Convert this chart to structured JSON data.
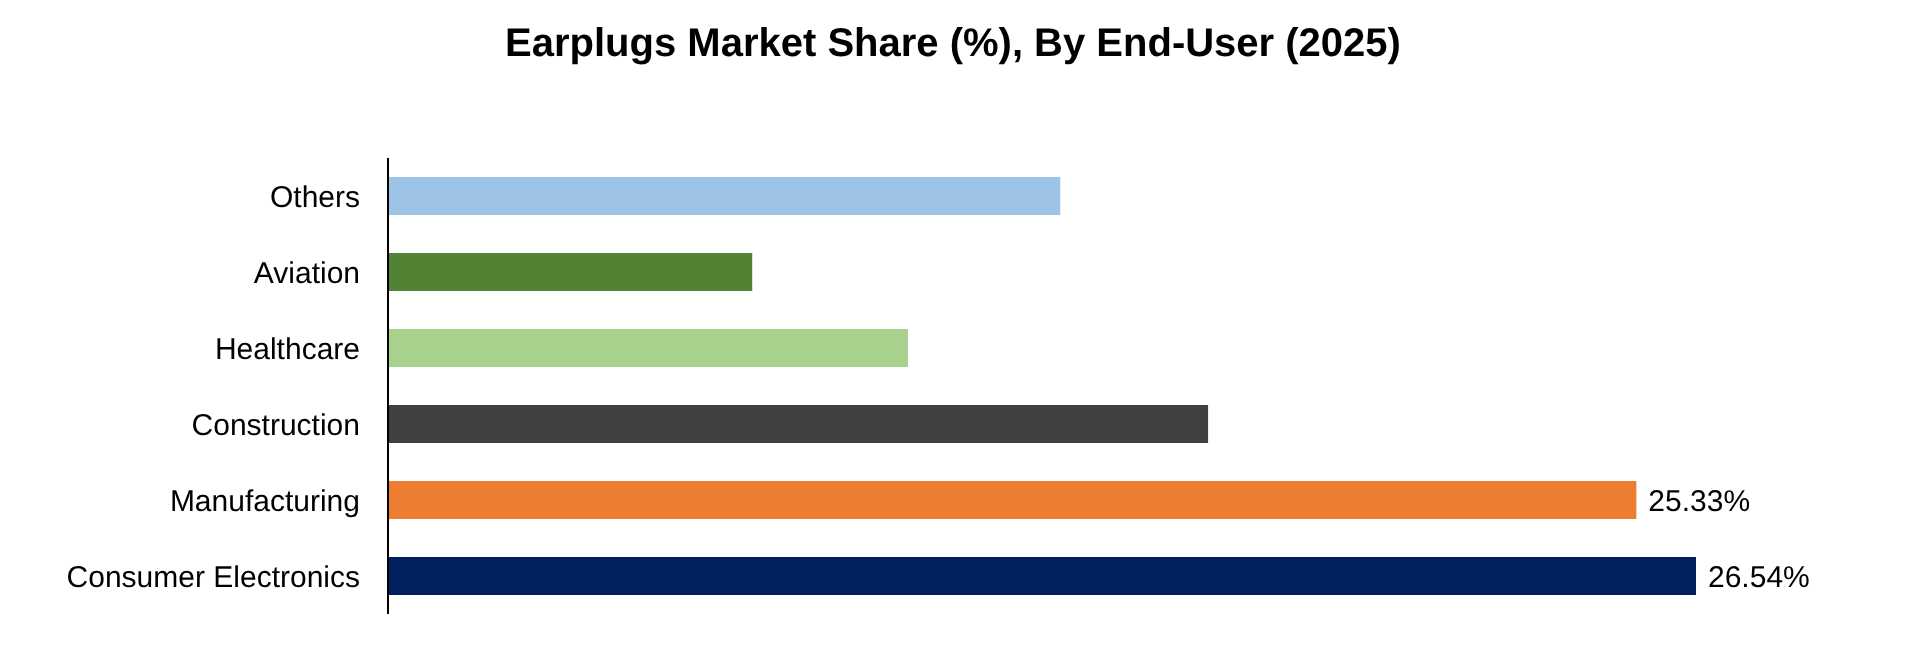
{
  "chart_data": {
    "type": "bar",
    "orientation": "horizontal",
    "title": "Earplugs Market Share (%), By End-User (2025)",
    "categories": [
      "Others",
      "Aviation",
      "Healthcare",
      "Construction",
      "Manufacturing",
      "Consumer Electronics"
    ],
    "values": [
      13.64,
      7.39,
      10.55,
      16.64,
      25.33,
      26.54
    ],
    "colors": [
      "#9dc3e6",
      "#548235",
      "#a9d18e",
      "#404040",
      "#ed7d31",
      "#002060"
    ],
    "value_labels": [
      null,
      null,
      null,
      null,
      "25.33%",
      "26.54%"
    ]
  }
}
